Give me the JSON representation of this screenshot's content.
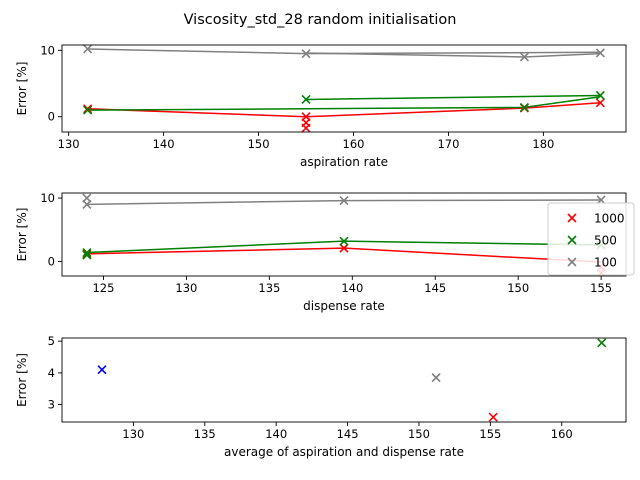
{
  "title": "Viscosity_std_28 random initialisation",
  "colors": {
    "1000": "#ff0000",
    "500": "#008000",
    "100": "#808080",
    "blue": "#0000ff"
  },
  "chart_data": [
    {
      "type": "line",
      "xlabel": "aspiration rate",
      "ylabel": "Error [%]",
      "xlim": [
        129.3,
        188.7
      ],
      "ylim": [
        -2.3,
        10.8
      ],
      "xticks": [
        130,
        140,
        150,
        160,
        170,
        180
      ],
      "yticks": [
        0,
        10
      ],
      "series": [
        {
          "key": "1000",
          "color": "#ff0000",
          "x": [
            132,
            155,
            178,
            186
          ],
          "y": [
            1.2,
            0.0,
            1.3,
            2.1
          ]
        },
        {
          "key": "500",
          "color": "#008000",
          "x": [
            132,
            155,
            178,
            186
          ],
          "y": [
            1.0,
            1.2,
            1.4,
            3.0
          ]
        },
        {
          "key": "500",
          "color": "#008000",
          "x": [
            155,
            186
          ],
          "y": [
            2.6,
            3.2
          ]
        },
        {
          "key": "100",
          "color": "#808080",
          "x": [
            132,
            155,
            186
          ],
          "y": [
            10.2,
            9.5,
            9.7
          ]
        },
        {
          "key": "100",
          "color": "#808080",
          "x": [
            155,
            178,
            186
          ],
          "y": [
            9.6,
            9.0,
            9.5
          ]
        }
      ],
      "markers": [
        {
          "color": "#ff0000",
          "x": [
            132,
            155,
            155,
            155,
            178,
            186
          ],
          "y": [
            1.2,
            0.0,
            -0.9,
            -1.7,
            1.3,
            2.1
          ]
        },
        {
          "color": "#008000",
          "x": [
            132,
            155,
            178,
            186
          ],
          "y": [
            1.0,
            2.6,
            1.4,
            3.2
          ]
        },
        {
          "color": "#808080",
          "x": [
            132,
            155,
            178,
            186
          ],
          "y": [
            10.2,
            9.5,
            9.0,
            9.6
          ]
        }
      ]
    },
    {
      "type": "line",
      "xlabel": "dispense rate",
      "ylabel": "Error [%]",
      "xlim": [
        122.5,
        156.5
      ],
      "ylim": [
        -2.3,
        10.8
      ],
      "xticks": [
        125,
        130,
        135,
        140,
        145,
        150,
        155
      ],
      "yticks": [
        0,
        10
      ],
      "series": [
        {
          "key": "1000",
          "color": "#ff0000",
          "x": [
            124,
            139.5,
            155
          ],
          "y": [
            1.2,
            2.1,
            -0.1
          ]
        },
        {
          "key": "500",
          "color": "#008000",
          "x": [
            124,
            139.5,
            155
          ],
          "y": [
            1.4,
            3.2,
            2.6
          ]
        },
        {
          "key": "100",
          "color": "#808080",
          "x": [
            124,
            139.5,
            155
          ],
          "y": [
            9.0,
            9.6,
            9.7
          ]
        }
      ],
      "markers": [
        {
          "color": "#ff0000",
          "x": [
            124,
            139.5,
            155,
            155
          ],
          "y": [
            1.2,
            2.1,
            -0.9,
            -1.8
          ]
        },
        {
          "color": "#008000",
          "x": [
            124,
            124,
            139.5,
            155
          ],
          "y": [
            1.0,
            1.4,
            3.2,
            2.6
          ]
        },
        {
          "color": "#808080",
          "x": [
            124,
            124,
            139.5,
            155
          ],
          "y": [
            9.0,
            10.0,
            9.6,
            9.7
          ]
        }
      ],
      "legend": {
        "placement": "right",
        "entries": [
          {
            "label": "1000",
            "color": "#ff0000"
          },
          {
            "label": "500",
            "color": "#008000"
          },
          {
            "label": "100",
            "color": "#808080"
          }
        ]
      }
    },
    {
      "type": "scatter",
      "xlabel": "average of aspiration and dispense rate",
      "ylabel": "Error [%]",
      "xlim": [
        125.0,
        164.5
      ],
      "ylim": [
        2.45,
        5.1
      ],
      "xticks": [
        130,
        135,
        140,
        145,
        150,
        155,
        160
      ],
      "yticks": [
        3,
        4,
        5
      ],
      "markers": [
        {
          "color": "#0000ff",
          "x": [
            127.8
          ],
          "y": [
            4.1
          ]
        },
        {
          "color": "#808080",
          "x": [
            151.2
          ],
          "y": [
            3.85
          ]
        },
        {
          "color": "#ff0000",
          "x": [
            155.2
          ],
          "y": [
            2.6
          ]
        },
        {
          "color": "#008000",
          "x": [
            162.8
          ],
          "y": [
            4.95
          ]
        }
      ]
    }
  ]
}
